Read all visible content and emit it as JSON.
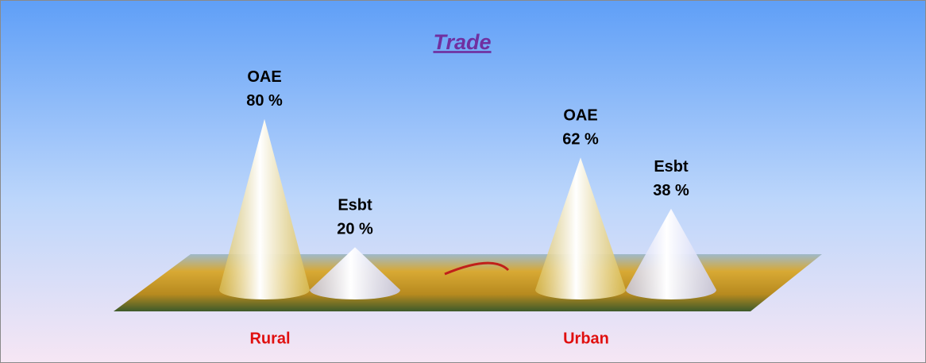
{
  "chart_data": {
    "type": "cone",
    "title": "Trade",
    "categories": [
      "Rural",
      "Urban"
    ],
    "series": [
      {
        "name": "OAE",
        "color": "#d9bd55",
        "values": [
          80,
          62
        ],
        "value_labels": [
          "80 %",
          "62 %"
        ]
      },
      {
        "name": "Esbt",
        "color": "#c9cdf2",
        "values": [
          20,
          38
        ],
        "value_labels": [
          "20 %",
          "38 %"
        ]
      }
    ]
  }
}
